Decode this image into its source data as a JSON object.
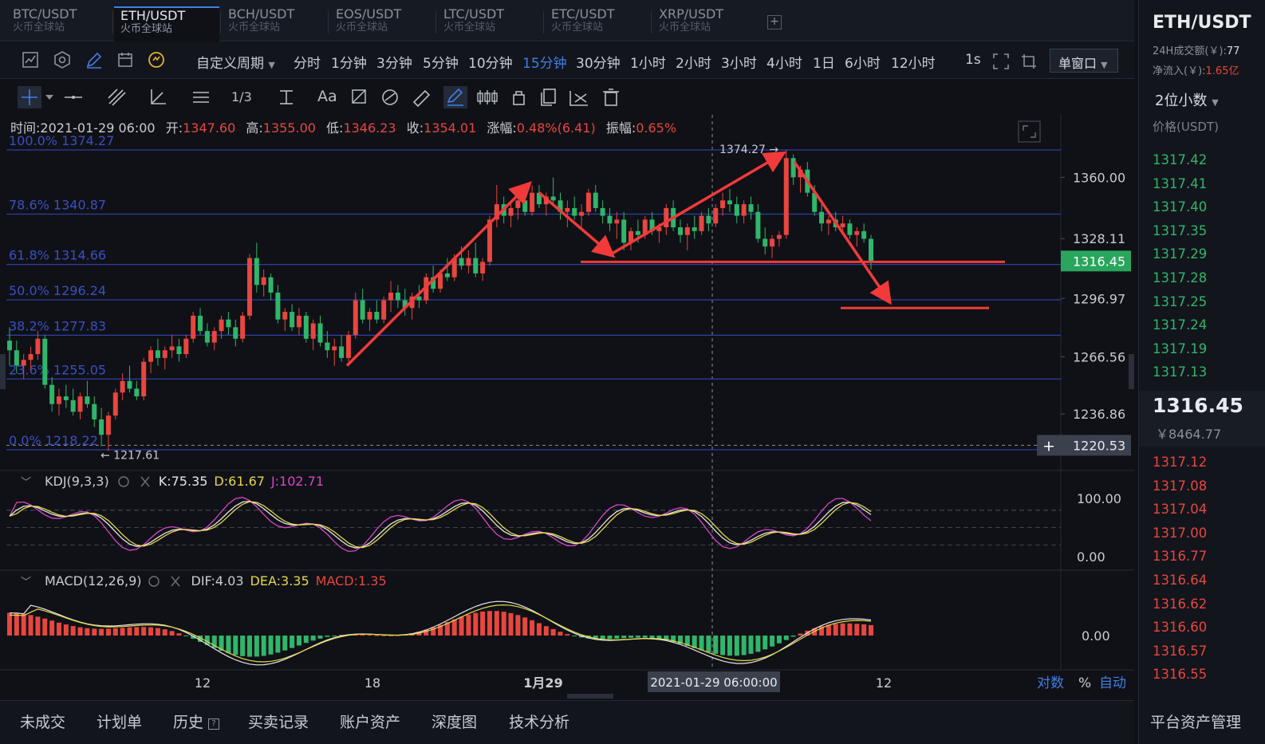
{
  "tabs": [
    {
      "pair": "BTC/USDT",
      "site": "火币全球站"
    },
    {
      "pair": "ETH/USDT",
      "site": "火币全球站",
      "active": true
    },
    {
      "pair": "BCH/USDT",
      "site": "火币全球站"
    },
    {
      "pair": "EOS/USDT",
      "site": "火币全球站"
    },
    {
      "pair": "LTC/USDT",
      "site": "火币全球站"
    },
    {
      "pair": "ETC/USDT",
      "site": "火币全球站"
    },
    {
      "pair": "XRP/USDT",
      "site": "火币全球站"
    }
  ],
  "tab_add": "+",
  "toolbar": {
    "custom_period": "自定义周期",
    "periods": [
      "分时",
      "1分钟",
      "3分钟",
      "5分钟",
      "10分钟",
      "15分钟",
      "30分钟",
      "1小时",
      "2小时",
      "3小时",
      "4小时",
      "1日",
      "6小时",
      "12小时"
    ],
    "active_period": "15分钟",
    "refresh": "1s",
    "window_mode": "单窗口",
    "icons": [
      "chart-type-icon",
      "settings-icon",
      "pen-icon",
      "calendar-icon",
      "indicator-icon"
    ]
  },
  "draw_tools": [
    "crosshair-icon",
    "horizontal-line-icon",
    "trend-line-icon",
    "angle-icon",
    "parallel-lines-icon",
    "wave-icon",
    "measure-icon",
    "text-icon",
    "brush-icon",
    "eraser-icon",
    "ruler-icon",
    "draw-mode-icon",
    "candle-pattern-icon",
    "lock-icon",
    "copy-icon",
    "magnet-icon",
    "trash-icon"
  ],
  "text_tool_label": "Aa",
  "wave_tool_label": "1/3",
  "ohlc": {
    "time_label": "时间:",
    "time": "2021-01-29 06:00",
    "open_label": "开:",
    "open": "1347.60",
    "high_label": "高:",
    "high": "1355.00",
    "low_label": "低:",
    "low": "1346.23",
    "close_label": "收:",
    "close": "1354.01",
    "change_label": "涨幅:",
    "change": "0.48%(6.41)",
    "amp_label": "振幅:",
    "amp": "0.65%"
  },
  "chart_data": {
    "type": "candlestick",
    "fib_levels": [
      {
        "label": "100.0% 1374.27",
        "price": 1374.27
      },
      {
        "label": "78.6% 1340.87",
        "price": 1340.87
      },
      {
        "label": "61.8% 1314.66",
        "price": 1314.66
      },
      {
        "label": "50.0% 1296.24",
        "price": 1296.24
      },
      {
        "label": "38.2% 1277.83",
        "price": 1277.83
      },
      {
        "label": "23.6% 1255.05",
        "price": 1255.05
      },
      {
        "label": "0.0% 1218.22",
        "price": 1218.22
      }
    ],
    "y_ticks": [
      "1360.00",
      "1328.11",
      "1296.97",
      "1266.56",
      "1236.86"
    ],
    "y_ticks_values": [
      1360.0,
      1328.11,
      1296.97,
      1266.56,
      1236.86
    ],
    "current_price": "1316.45",
    "current_price_value": 1316.45,
    "crosshair_price": "1220.53",
    "crosshair_price_value": 1220.53,
    "crosshair_plus": "+",
    "high_marker": "1374.27",
    "high_marker_value": 1374.27,
    "low_marker": "1217.61",
    "low_marker_value": 1217.61,
    "x_ticks": [
      "12",
      "18",
      "1月29",
      "12"
    ],
    "crosshair_time": "2021-01-29 06:00:00",
    "ylim": [
      1210,
      1385
    ],
    "candles": [
      [
        1275,
        1282,
        1262,
        1270
      ],
      [
        1270,
        1275,
        1258,
        1262
      ],
      [
        1262,
        1268,
        1255,
        1265
      ],
      [
        1265,
        1272,
        1260,
        1268
      ],
      [
        1268,
        1280,
        1265,
        1276
      ],
      [
        1276,
        1278,
        1250,
        1252
      ],
      [
        1252,
        1256,
        1238,
        1242
      ],
      [
        1242,
        1250,
        1236,
        1246
      ],
      [
        1246,
        1252,
        1240,
        1244
      ],
      [
        1244,
        1250,
        1236,
        1238
      ],
      [
        1238,
        1248,
        1234,
        1246
      ],
      [
        1246,
        1254,
        1240,
        1242
      ],
      [
        1242,
        1246,
        1230,
        1234
      ],
      [
        1234,
        1240,
        1220,
        1226
      ],
      [
        1226,
        1238,
        1217.61,
        1236
      ],
      [
        1236,
        1250,
        1234,
        1248
      ],
      [
        1248,
        1258,
        1244,
        1254
      ],
      [
        1254,
        1262,
        1248,
        1250
      ],
      [
        1250,
        1254,
        1244,
        1246
      ],
      [
        1246,
        1266,
        1244,
        1264
      ],
      [
        1264,
        1272,
        1258,
        1270
      ],
      [
        1270,
        1276,
        1262,
        1266
      ],
      [
        1266,
        1272,
        1260,
        1270
      ],
      [
        1270,
        1278,
        1266,
        1272
      ],
      [
        1272,
        1276,
        1264,
        1268
      ],
      [
        1268,
        1278,
        1266,
        1276
      ],
      [
        1276,
        1290,
        1274,
        1288
      ],
      [
        1288,
        1292,
        1278,
        1280
      ],
      [
        1280,
        1284,
        1272,
        1274
      ],
      [
        1274,
        1282,
        1270,
        1280
      ],
      [
        1280,
        1288,
        1276,
        1286
      ],
      [
        1286,
        1290,
        1278,
        1282
      ],
      [
        1282,
        1286,
        1272,
        1276
      ],
      [
        1276,
        1290,
        1274,
        1288
      ],
      [
        1288,
        1320,
        1286,
        1318
      ],
      [
        1318,
        1326,
        1300,
        1304
      ],
      [
        1304,
        1312,
        1298,
        1308
      ],
      [
        1308,
        1310,
        1296,
        1300
      ],
      [
        1300,
        1304,
        1284,
        1286
      ],
      [
        1286,
        1292,
        1280,
        1290
      ],
      [
        1290,
        1294,
        1280,
        1282
      ],
      [
        1282,
        1292,
        1278,
        1288
      ],
      [
        1288,
        1290,
        1274,
        1276
      ],
      [
        1276,
        1286,
        1270,
        1284
      ],
      [
        1284,
        1288,
        1272,
        1274
      ],
      [
        1274,
        1280,
        1266,
        1270
      ],
      [
        1270,
        1276,
        1262,
        1272
      ],
      [
        1272,
        1278,
        1264,
        1266
      ],
      [
        1266,
        1280,
        1264,
        1278
      ],
      [
        1278,
        1300,
        1276,
        1296
      ],
      [
        1296,
        1302,
        1284,
        1286
      ],
      [
        1286,
        1292,
        1280,
        1290
      ],
      [
        1290,
        1296,
        1284,
        1286
      ],
      [
        1286,
        1298,
        1284,
        1296
      ],
      [
        1296,
        1306,
        1290,
        1300
      ],
      [
        1300,
        1304,
        1292,
        1296
      ],
      [
        1296,
        1302,
        1288,
        1292
      ],
      [
        1292,
        1300,
        1286,
        1298
      ],
      [
        1298,
        1304,
        1292,
        1296
      ],
      [
        1296,
        1310,
        1294,
        1308
      ],
      [
        1308,
        1314,
        1300,
        1302
      ],
      [
        1302,
        1312,
        1300,
        1310
      ],
      [
        1310,
        1318,
        1306,
        1308
      ],
      [
        1308,
        1320,
        1306,
        1318
      ],
      [
        1318,
        1324,
        1312,
        1314
      ],
      [
        1314,
        1322,
        1310,
        1318
      ],
      [
        1318,
        1326,
        1308,
        1310
      ],
      [
        1310,
        1318,
        1306,
        1316
      ],
      [
        1316,
        1340,
        1314,
        1338
      ],
      [
        1338,
        1356,
        1334,
        1346
      ],
      [
        1346,
        1350,
        1336,
        1340
      ],
      [
        1340,
        1348,
        1334,
        1344
      ],
      [
        1344,
        1352,
        1338,
        1348
      ],
      [
        1348,
        1354,
        1340,
        1342
      ],
      [
        1342,
        1356,
        1340,
        1352
      ],
      [
        1352,
        1356,
        1344,
        1346
      ],
      [
        1346,
        1352,
        1340,
        1350
      ],
      [
        1350,
        1360,
        1346,
        1348
      ],
      [
        1348,
        1352,
        1338,
        1342
      ],
      [
        1342,
        1348,
        1334,
        1344
      ],
      [
        1344,
        1350,
        1338,
        1340
      ],
      [
        1340,
        1346,
        1334,
        1342
      ],
      [
        1342,
        1354,
        1340,
        1352
      ],
      [
        1352,
        1356,
        1342,
        1344
      ],
      [
        1344,
        1348,
        1336,
        1340
      ],
      [
        1340,
        1344,
        1332,
        1336
      ],
      [
        1336,
        1342,
        1328,
        1338
      ],
      [
        1338,
        1342,
        1322,
        1326
      ],
      [
        1326,
        1334,
        1322,
        1332
      ],
      [
        1332,
        1338,
        1326,
        1330
      ],
      [
        1330,
        1340,
        1328,
        1338
      ],
      [
        1338,
        1342,
        1330,
        1332
      ],
      [
        1332,
        1336,
        1326,
        1334
      ],
      [
        1334,
        1346,
        1330,
        1344
      ],
      [
        1344,
        1348,
        1332,
        1334
      ],
      [
        1334,
        1338,
        1326,
        1330
      ],
      [
        1330,
        1336,
        1322,
        1334
      ],
      [
        1334,
        1340,
        1328,
        1332
      ],
      [
        1332,
        1342,
        1330,
        1340
      ],
      [
        1340,
        1344,
        1332,
        1336
      ],
      [
        1336,
        1346,
        1334,
        1344
      ],
      [
        1344,
        1352,
        1340,
        1348
      ],
      [
        1348,
        1354,
        1342,
        1346
      ],
      [
        1346,
        1350,
        1336,
        1340
      ],
      [
        1340,
        1348,
        1336,
        1346
      ],
      [
        1346,
        1350,
        1338,
        1342
      ],
      [
        1342,
        1346,
        1326,
        1328
      ],
      [
        1328,
        1334,
        1320,
        1324
      ],
      [
        1324,
        1330,
        1318,
        1328
      ],
      [
        1328,
        1332,
        1324,
        1330
      ],
      [
        1330,
        1374.27,
        1328,
        1370
      ],
      [
        1370,
        1372,
        1356,
        1360
      ],
      [
        1360,
        1366,
        1352,
        1364
      ],
      [
        1364,
        1368,
        1350,
        1352
      ],
      [
        1352,
        1356,
        1340,
        1342
      ],
      [
        1342,
        1346,
        1332,
        1336
      ],
      [
        1336,
        1340,
        1330,
        1338
      ],
      [
        1338,
        1342,
        1332,
        1334
      ],
      [
        1334,
        1340,
        1330,
        1336
      ],
      [
        1336,
        1338,
        1328,
        1330
      ],
      [
        1330,
        1334,
        1324,
        1332
      ],
      [
        1332,
        1336,
        1326,
        1328
      ],
      [
        1328,
        1330,
        1312,
        1316.45
      ]
    ],
    "arrows": [
      {
        "from": [
          435,
          1262
        ],
        "to": [
          662,
          1356
        ]
      },
      {
        "from": [
          676,
          1352
        ],
        "to": [
          766,
          1320
        ]
      },
      {
        "from": [
          766,
          1320
        ],
        "to": [
          980,
          1372
        ]
      },
      {
        "from": [
          996,
          1368
        ],
        "to": [
          1114,
          1296
        ]
      }
    ],
    "hlines": [
      {
        "x1": 728,
        "x2": 1260,
        "price": 1316
      },
      {
        "x1": 1054,
        "x2": 1240,
        "price": 1292
      }
    ],
    "kdj": {
      "label": "KDJ(9,3,3)",
      "k_label": "K:75.35",
      "d_label": "D:61.67",
      "j_label": "J:102.71",
      "y_ticks": [
        "100.00",
        "0.00"
      ],
      "y_ticks_values": [
        100,
        0
      ]
    },
    "macd": {
      "label": "MACD(12,26,9)",
      "dif_label": "DIF:4.03",
      "dea_label": "DEA:3.35",
      "macd_label": "MACD:1.35",
      "y_ticks": [
        "0.00"
      ],
      "y_ticks_values": [
        0
      ]
    },
    "bottom_controls": [
      "对数",
      "%",
      "自动"
    ]
  },
  "bottom_tabs": [
    "未成交",
    "计划单",
    "历史",
    "买卖记录",
    "账户资产",
    "深度图",
    "技术分析"
  ],
  "history_help": "?",
  "right_panel": {
    "symbol": "ETH/USDT",
    "volume_label": "24H成交额(￥):",
    "volume_value": "77",
    "inflow_label": "净流入(￥):",
    "inflow_value": "1.65亿",
    "decimals": "2位小数",
    "price_header": "价格(USDT)",
    "asks": [
      "1317.42",
      "1317.41",
      "1317.40",
      "1317.35",
      "1317.29",
      "1317.28",
      "1317.25",
      "1317.24",
      "1317.19",
      "1317.13"
    ],
    "current": "1316.45",
    "current_cny": "￥8464.77",
    "bids": [
      "1317.12",
      "1317.08",
      "1317.04",
      "1317.00",
      "1316.77",
      "1316.64",
      "1316.62",
      "1316.60",
      "1316.57",
      "1316.55"
    ],
    "bottom_title": "平台资产管理"
  },
  "colors": {
    "up": "#e8463f",
    "down": "#2fb66b",
    "accent": "#3f7fe6",
    "fib": "#2f3fa8",
    "arrow": "#f23a3a",
    "price_tag": "#2aa55d"
  }
}
